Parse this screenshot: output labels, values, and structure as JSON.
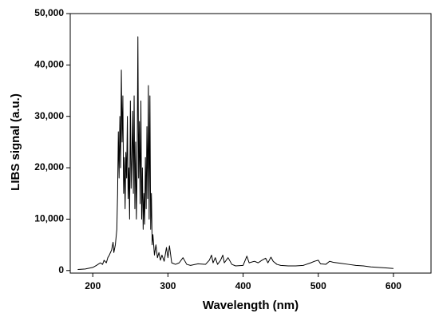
{
  "chart_data": {
    "type": "line",
    "xlabel": "Wavelength (nm)",
    "ylabel": "LIBS signal (a.u.)",
    "xlim": [
      170,
      650
    ],
    "ylim": [
      -500,
      50000
    ],
    "xticks": [
      200,
      300,
      400,
      500,
      600
    ],
    "yticks": [
      0,
      {
        "value": 10000,
        "label": "10,000"
      },
      {
        "value": 20000,
        "label": "20,000"
      },
      {
        "value": 30000,
        "label": "30,000"
      },
      {
        "value": 40000,
        "label": "40,000"
      },
      {
        "value": 50000,
        "label": "50,000"
      }
    ],
    "x": [
      180,
      190,
      200,
      205,
      210,
      213,
      215,
      218,
      220,
      222,
      225,
      227,
      228,
      230,
      232,
      233,
      234,
      235,
      236,
      237,
      238,
      239,
      240,
      241,
      242,
      243,
      244,
      245,
      246,
      247,
      248,
      249,
      250,
      251,
      252,
      253,
      254,
      255,
      256,
      257,
      258,
      259,
      260,
      261,
      262,
      263,
      264,
      265,
      266,
      267,
      268,
      269,
      270,
      271,
      272,
      273,
      274,
      275,
      276,
      277,
      278,
      279,
      280,
      282,
      284,
      286,
      288,
      290,
      292,
      295,
      298,
      300,
      302,
      305,
      310,
      315,
      320,
      325,
      330,
      340,
      350,
      355,
      358,
      360,
      363,
      366,
      370,
      373,
      375,
      380,
      385,
      390,
      400,
      405,
      408,
      415,
      420,
      425,
      430,
      433,
      437,
      440,
      445,
      450,
      460,
      470,
      480,
      490,
      495,
      500,
      503,
      510,
      515,
      520,
      525,
      530,
      540,
      550,
      560,
      570,
      580,
      590,
      600
    ],
    "series": [
      {
        "color": "#000000",
        "values": [
          200,
          300,
          600,
          1000,
          1500,
          1200,
          2000,
          1500,
          2500,
          3000,
          4000,
          5500,
          3500,
          5000,
          8000,
          15000,
          27000,
          18000,
          30000,
          20000,
          39000,
          25000,
          34000,
          15000,
          22000,
          12000,
          23000,
          18000,
          30000,
          14000,
          20000,
          10000,
          33000,
          16000,
          22000,
          31000,
          15000,
          34000,
          12000,
          25000,
          10000,
          20000,
          45500,
          18000,
          29000,
          13000,
          33000,
          10000,
          20000,
          8000,
          15000,
          9000,
          22000,
          12000,
          28000,
          14000,
          36000,
          10000,
          34000,
          8000,
          15000,
          5000,
          7000,
          3000,
          5000,
          2500,
          3500,
          2000,
          3000,
          1800,
          4500,
          2500,
          4800,
          1500,
          1200,
          1500,
          2500,
          1200,
          1000,
          1300,
          1200,
          2000,
          3000,
          1500,
          2500,
          1200,
          2000,
          3000,
          1500,
          2500,
          1200,
          900,
          1000,
          2800,
          1500,
          1800,
          1500,
          2000,
          2400,
          1500,
          2600,
          1800,
          1200,
          1000,
          900,
          900,
          1000,
          1500,
          1800,
          2000,
          1300,
          1200,
          1800,
          1600,
          1500,
          1400,
          1200,
          1000,
          900,
          700,
          600,
          500,
          400
        ]
      }
    ]
  }
}
